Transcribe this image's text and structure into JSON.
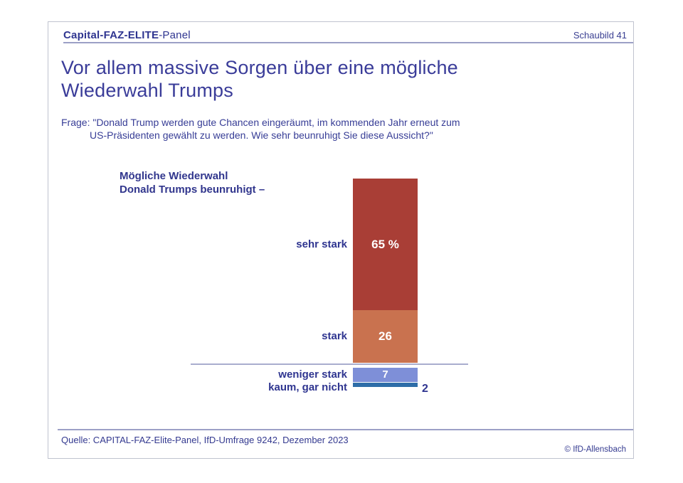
{
  "header": {
    "brand_bold": "Capital-FAZ-ELITE",
    "brand_suffix": "-Panel",
    "slide_label": "Schaubild 41"
  },
  "title": {
    "line1": "Vor allem massive Sorgen über eine mögliche",
    "line2": "Wiederwahl Trumps"
  },
  "question": {
    "line1": "Frage: \"Donald Trump werden gute Chancen eingeräumt, im kommenden Jahr erneut zum",
    "line2": "US-Präsidenten gewählt zu werden. Wie sehr beunruhigt Sie diese Aussicht?\""
  },
  "chart_caption": {
    "line1": "Mögliche Wiederwahl",
    "line2": "Donald Trumps beunruhigt –"
  },
  "chart_data": {
    "type": "bar",
    "title": "Mögliche Wiederwahl Donald Trumps beunruhigt –",
    "orientation": "vertical",
    "stacked": true,
    "unit": "percent",
    "categories": [
      "sehr stark",
      "stark",
      "weniger stark",
      "kaum, gar nicht"
    ],
    "values": [
      65,
      26,
      7,
      2
    ],
    "value_labels": [
      "65 %",
      "26",
      "7",
      "2"
    ],
    "colors": [
      "#A93E36",
      "#C9724F",
      "#7E8FD8",
      "#2E6DA8"
    ],
    "layout_note": "single stacked column; bottom two categories drawn below a horizontal baseline; last value labeled outside the bar"
  },
  "footer": {
    "source": "Quelle: CAPITAL-FAZ-Elite-Panel, IfD-Umfrage 9242, Dezember 2023",
    "copyright": "© IfD-Allensbach"
  },
  "accent_colors": {
    "text_blue": "#2F3590",
    "rule_lavender": "#9CA0C6",
    "baseline_lavender": "#A9ADCE",
    "border_gray": "#C0C3CF"
  }
}
